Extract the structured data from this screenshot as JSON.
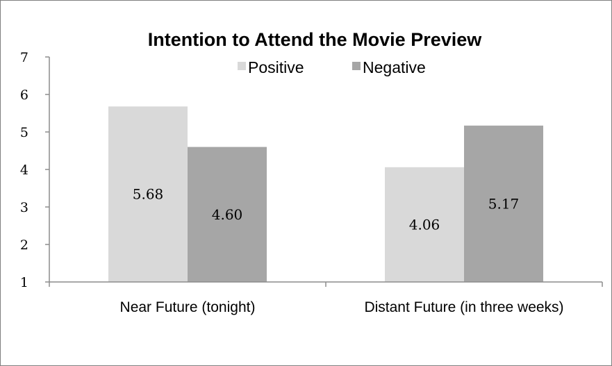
{
  "chart_data": {
    "type": "bar",
    "title": "Intention to Attend the Movie Preview",
    "xlabel": "",
    "ylabel": "",
    "ylim": [
      1,
      7
    ],
    "yticks": [
      1,
      2,
      3,
      4,
      5,
      6,
      7
    ],
    "grid": false,
    "legend_position": "top",
    "categories": [
      "Near Future (tonight)",
      "Distant Future (in three weeks)"
    ],
    "series": [
      {
        "name": "Positive",
        "color": "#d9d9d9",
        "values": [
          5.68,
          4.06
        ],
        "labels": [
          "5.68",
          "4.06"
        ]
      },
      {
        "name": "Negative",
        "color": "#a6a6a6",
        "values": [
          4.6,
          5.17
        ],
        "labels": [
          "4.60",
          "5.17"
        ]
      }
    ]
  }
}
